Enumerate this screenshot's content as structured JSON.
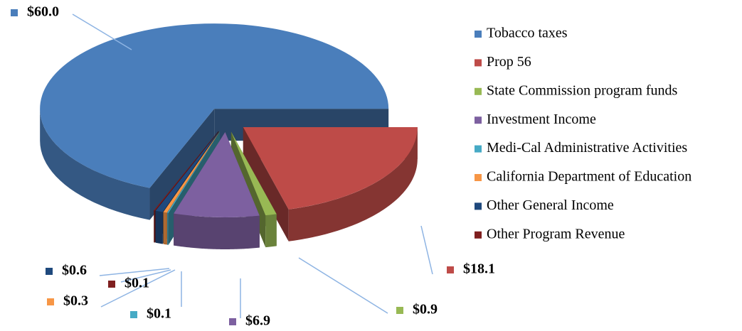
{
  "chart_data": {
    "type": "pie3d",
    "categories": [
      "Tobacco taxes",
      "Prop 56",
      "State Commission program funds",
      "Investment Income",
      "Medi-Cal Administrative Activities",
      "California Department of Education",
      "Other General Income",
      "Other Program Revenue"
    ],
    "values": [
      60.0,
      18.1,
      0.9,
      6.9,
      0.1,
      0.3,
      0.6,
      0.1
    ],
    "value_labels": [
      "$60.0",
      "$18.1",
      "$0.9",
      "$6.9",
      "$0.1",
      "$0.3",
      "$0.6",
      "$0.1"
    ],
    "colors": [
      "#4a7ebb",
      "#be4b48",
      "#98b954",
      "#7d60a0",
      "#46aac5",
      "#f79646",
      "#1f497d",
      "#7f1f1f"
    ],
    "legend": "right"
  }
}
